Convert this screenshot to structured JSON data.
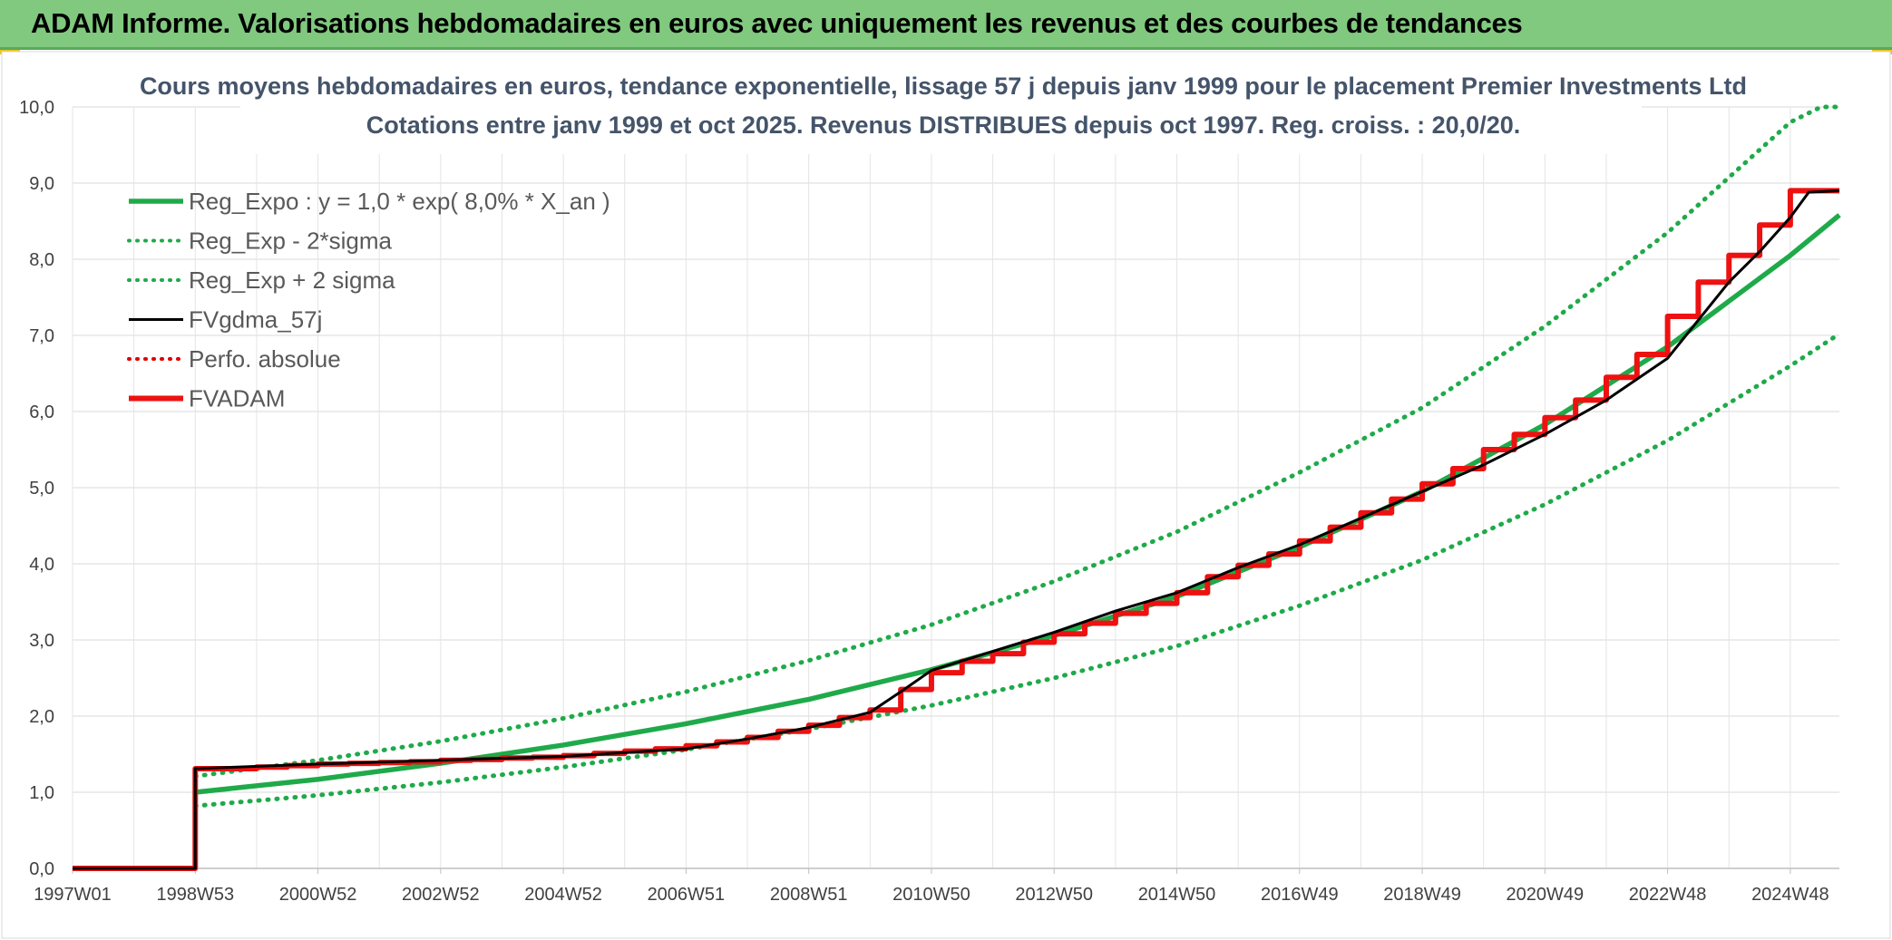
{
  "header": {
    "title": "ADAM Informe. Valorisations hebdomadaires en euros avec uniquement les revenus et des courbes de tendances"
  },
  "chart_data": {
    "type": "line",
    "title": "Cours moyens hebdomadaires en euros, tendance exponentielle, lissage 57 j depuis janv 1999 pour le placement Premier Investments Ltd",
    "subtitle": "Cotations entre janv 1999 et oct 2025. Revenus DISTRIBUES depuis oct 1997. Reg. croiss. : 20,0/20.",
    "xlabel": "",
    "ylabel": "",
    "ylim": [
      0,
      10
    ],
    "yticks": [
      "0,0",
      "1,0",
      "2,0",
      "3,0",
      "4,0",
      "5,0",
      "6,0",
      "7,0",
      "8,0",
      "9,0",
      "10,0"
    ],
    "xlim": [
      1997.0,
      2025.8
    ],
    "xticks": [
      {
        "label": "1997W01",
        "x": 1997.0
      },
      {
        "label": "1998W53",
        "x": 1999.0
      },
      {
        "label": "2000W52",
        "x": 2001.0
      },
      {
        "label": "2002W52",
        "x": 2003.0
      },
      {
        "label": "2004W52",
        "x": 2005.0
      },
      {
        "label": "2006W51",
        "x": 2007.0
      },
      {
        "label": "2008W51",
        "x": 2009.0
      },
      {
        "label": "2010W50",
        "x": 2011.0
      },
      {
        "label": "2012W50",
        "x": 2013.0
      },
      {
        "label": "2014W50",
        "x": 2015.0
      },
      {
        "label": "2016W49",
        "x": 2017.0
      },
      {
        "label": "2018W49",
        "x": 2019.0
      },
      {
        "label": "2020W49",
        "x": 2021.0
      },
      {
        "label": "2022W48",
        "x": 2023.0
      },
      {
        "label": "2024W48",
        "x": 2025.0
      }
    ],
    "grid": true,
    "legend_position": "top-left",
    "series": [
      {
        "name": "Reg_Expo : y = 1,0 * exp( 8,0% *  X_an )",
        "color": "#1faa4a",
        "style": "solid",
        "x": [
          1999,
          2001,
          2003,
          2005,
          2007,
          2009,
          2011,
          2013,
          2015,
          2017,
          2019,
          2021,
          2023,
          2025,
          2026
        ],
        "y": [
          1.0,
          1.17,
          1.38,
          1.62,
          1.9,
          2.22,
          2.61,
          3.06,
          3.57,
          4.22,
          4.95,
          5.83,
          6.85,
          8.05,
          8.58
        ]
      },
      {
        "name": "Reg_Exp - 2*sigma",
        "color": "#1faa4a",
        "style": "dotted",
        "x": [
          1999,
          2001,
          2003,
          2005,
          2007,
          2009,
          2011,
          2013,
          2015,
          2017,
          2019,
          2021,
          2023,
          2025,
          2026
        ],
        "y": [
          0.82,
          0.96,
          1.13,
          1.33,
          1.56,
          1.83,
          2.14,
          2.5,
          2.92,
          3.45,
          4.05,
          4.78,
          5.62,
          6.6,
          7.02
        ]
      },
      {
        "name": "Reg_Exp + 2 sigma",
        "color": "#1faa4a",
        "style": "dotted",
        "x": [
          1999,
          2001,
          2003,
          2005,
          2007,
          2009,
          2011,
          2013,
          2015,
          2017,
          2019,
          2021,
          2023,
          2025,
          2025.5,
          2026
        ],
        "y": [
          1.21,
          1.42,
          1.67,
          1.97,
          2.32,
          2.73,
          3.2,
          3.77,
          4.42,
          5.2,
          6.05,
          7.12,
          8.35,
          9.8,
          10.0,
          10.0
        ]
      },
      {
        "name": "FVgdma_57j",
        "color": "#000000",
        "style": "solid",
        "x": [
          1997.0,
          1999.0,
          1999.0,
          2001.0,
          2003.0,
          2005.0,
          2007.0,
          2008.0,
          2009.0,
          2010.0,
          2010.5,
          2011.0,
          2012.0,
          2013.0,
          2014.0,
          2015.0,
          2016.0,
          2017.0,
          2018.0,
          2019.0,
          2020.0,
          2021.0,
          2022.0,
          2023.0,
          2023.5,
          2024.0,
          2024.5,
          2025.0,
          2025.3,
          2026.0
        ],
        "y": [
          0.0,
          0.0,
          1.31,
          1.37,
          1.42,
          1.47,
          1.57,
          1.7,
          1.85,
          2.05,
          2.32,
          2.6,
          2.85,
          3.1,
          3.38,
          3.62,
          3.95,
          4.25,
          4.6,
          4.95,
          5.3,
          5.7,
          6.15,
          6.7,
          7.2,
          7.7,
          8.1,
          8.55,
          8.88,
          8.9
        ]
      },
      {
        "name": "Perfo. absolue",
        "color": "#e00000",
        "style": "dotted",
        "x": [],
        "y": []
      },
      {
        "name": "FVADAM",
        "color": "#ee1111",
        "style": "solid",
        "x": [
          1997.0,
          1999.0,
          1999.0,
          2000.0,
          2000.5,
          2001.0,
          2001.5,
          2002.0,
          2002.5,
          2003.0,
          2003.5,
          2004.0,
          2004.5,
          2005.0,
          2005.5,
          2006.0,
          2006.5,
          2007.0,
          2007.5,
          2008.0,
          2008.5,
          2009.0,
          2009.5,
          2010.0,
          2010.5,
          2011.0,
          2011.5,
          2012.0,
          2012.5,
          2013.0,
          2013.5,
          2014.0,
          2014.5,
          2015.0,
          2015.5,
          2016.0,
          2016.5,
          2017.0,
          2017.5,
          2018.0,
          2018.5,
          2019.0,
          2019.5,
          2020.0,
          2020.5,
          2021.0,
          2021.5,
          2022.0,
          2022.5,
          2023.0,
          2023.5,
          2024.0,
          2024.5,
          2025.0,
          2026.0
        ],
        "y": [
          0.0,
          0.0,
          1.31,
          1.33,
          1.35,
          1.37,
          1.38,
          1.39,
          1.4,
          1.42,
          1.43,
          1.45,
          1.46,
          1.48,
          1.51,
          1.54,
          1.57,
          1.61,
          1.66,
          1.72,
          1.8,
          1.88,
          1.98,
          2.08,
          2.35,
          2.57,
          2.72,
          2.82,
          2.97,
          3.08,
          3.22,
          3.35,
          3.48,
          3.62,
          3.83,
          3.98,
          4.13,
          4.3,
          4.48,
          4.67,
          4.85,
          5.05,
          5.25,
          5.5,
          5.7,
          5.92,
          6.15,
          6.45,
          6.75,
          7.25,
          7.7,
          8.05,
          8.45,
          8.9,
          8.9
        ]
      }
    ]
  }
}
